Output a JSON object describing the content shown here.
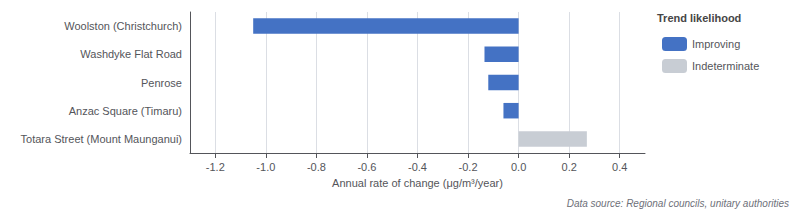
{
  "chart_data": {
    "type": "bar",
    "orientation": "horizontal",
    "categories": [
      "Totara Street (Mount Maunganui)",
      "Anzac Square (Timaru)",
      "Penrose",
      "Washdyke Flat Road",
      "Woolston (Christchurch)"
    ],
    "series": [
      {
        "name": "Improving",
        "color": "#4472c4",
        "values": [
          null,
          -0.06,
          -0.12,
          -0.135,
          -1.05
        ]
      },
      {
        "name": "Indeterminate",
        "color": "#c8cdd4",
        "values": [
          0.27,
          null,
          null,
          null,
          null
        ]
      }
    ],
    "xlabel": "Annual rate of change (μg/m³/year)",
    "xlim": [
      -1.3,
      0.5
    ],
    "xticks": [
      -1.2,
      {
        "value": -1,
        "label": "-1.0"
      },
      -0.8,
      -0.6,
      -0.4,
      -0.2,
      {
        "value": 0,
        "label": "0.0"
      },
      0.2,
      0.4
    ],
    "grid": true,
    "legend": "right",
    "legend_title": "Trend likelihood",
    "annotation": "Data source: Regional councils, unitary authorities"
  }
}
